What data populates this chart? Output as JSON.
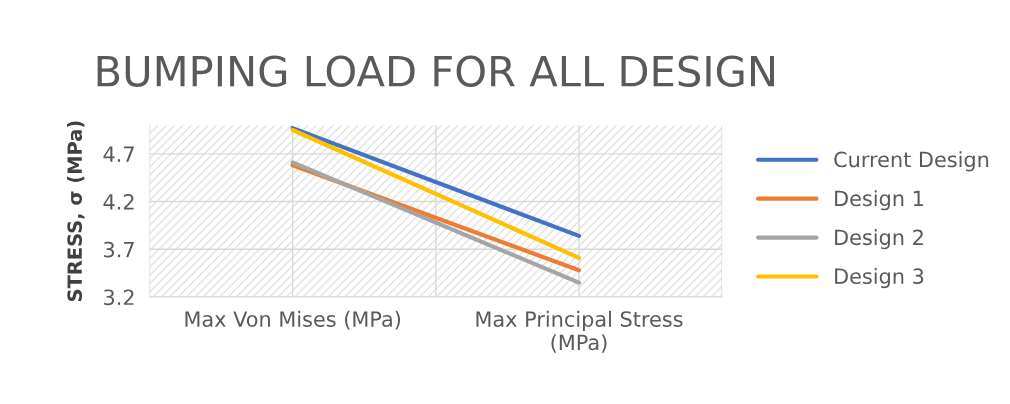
{
  "chart_data": {
    "type": "line",
    "title": "BUMPING LOAD FOR ALL DESIGN",
    "ylabel": "STRESS, σ (MPa)",
    "categories": [
      "Max Von Mises (MPa)",
      "Max Principal Stress (MPa)"
    ],
    "series": [
      {
        "name": "Current Design",
        "color": "#4472c4",
        "values": [
          4.97,
          3.84
        ]
      },
      {
        "name": "Design 1",
        "color": "#ed7d31",
        "values": [
          4.58,
          3.48
        ]
      },
      {
        "name": "Design 2",
        "color": "#a5a5a5",
        "values": [
          4.61,
          3.35
        ]
      },
      {
        "name": "Design 3",
        "color": "#ffc000",
        "values": [
          4.95,
          3.61
        ]
      }
    ],
    "ylim": [
      3.2,
      5.0
    ],
    "yticks": [
      3.2,
      3.7,
      4.2,
      4.7
    ],
    "grid": true,
    "legend": "right",
    "marker": "none",
    "line_style": "solid"
  }
}
